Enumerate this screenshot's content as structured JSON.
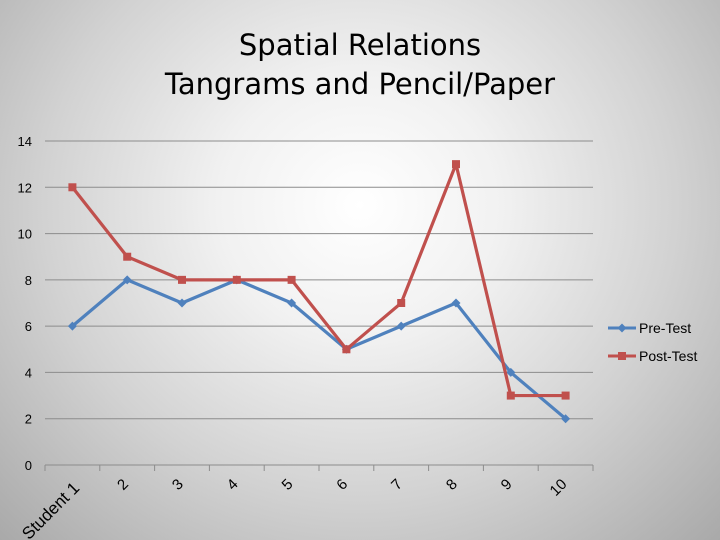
{
  "chart_data": {
    "type": "line",
    "title": "Spatial Relations",
    "subtitle": "Tangrams and Pencil/Paper",
    "categories": [
      "Student 1",
      "2",
      "3",
      "4",
      "5",
      "6",
      "7",
      "8",
      "9",
      "10"
    ],
    "series": [
      {
        "name": "Pre-Test",
        "values": [
          6,
          8,
          7,
          8,
          7,
          5,
          6,
          7,
          4,
          2
        ],
        "color": "#4f81bd",
        "marker": "diamond"
      },
      {
        "name": "Post-Test",
        "values": [
          12,
          9,
          8,
          8,
          8,
          5,
          7,
          13,
          3,
          3
        ],
        "color": "#c0504d",
        "marker": "square"
      }
    ],
    "ylim": [
      0,
      14
    ],
    "yticks": [
      "0",
      "2",
      "4",
      "6",
      "8",
      "10",
      "12",
      "14"
    ],
    "grid": true,
    "legend": "right"
  }
}
